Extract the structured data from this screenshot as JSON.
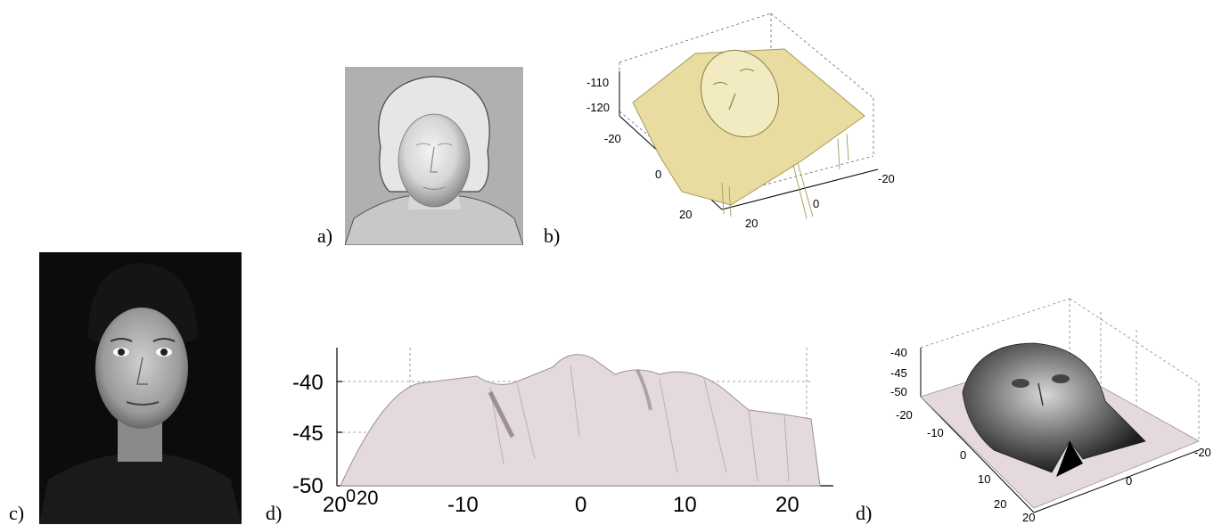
{
  "labels": {
    "a": "a)",
    "b": "b)",
    "c": "c)",
    "d1": "d)",
    "d2": "d)"
  },
  "panel_b": {
    "z_ticks": [
      "-110",
      "-120"
    ],
    "y_ticks": [
      "-20",
      "0",
      "20"
    ],
    "x_ticks": [
      "20",
      "0",
      "-20"
    ]
  },
  "panel_d1": {
    "z_ticks": [
      "-40",
      "-45",
      "-50"
    ],
    "x_ticks": [
      "20",
      "-10",
      "0",
      "10",
      "20"
    ],
    "overlap_ticks": [
      "0",
      "20"
    ]
  },
  "panel_d2": {
    "z_ticks": [
      "-40",
      "-45",
      "-50"
    ],
    "y_ticks": [
      "-20",
      "-10",
      "0",
      "10",
      "20"
    ],
    "x_ticks": [
      "20",
      "0",
      "-20"
    ]
  },
  "colors": {
    "bust_gray": "#b0b0b0",
    "surface_gold": "#e8dca0",
    "surface_pink": "#e4dade",
    "photo_bg": "#0c0c0c"
  }
}
